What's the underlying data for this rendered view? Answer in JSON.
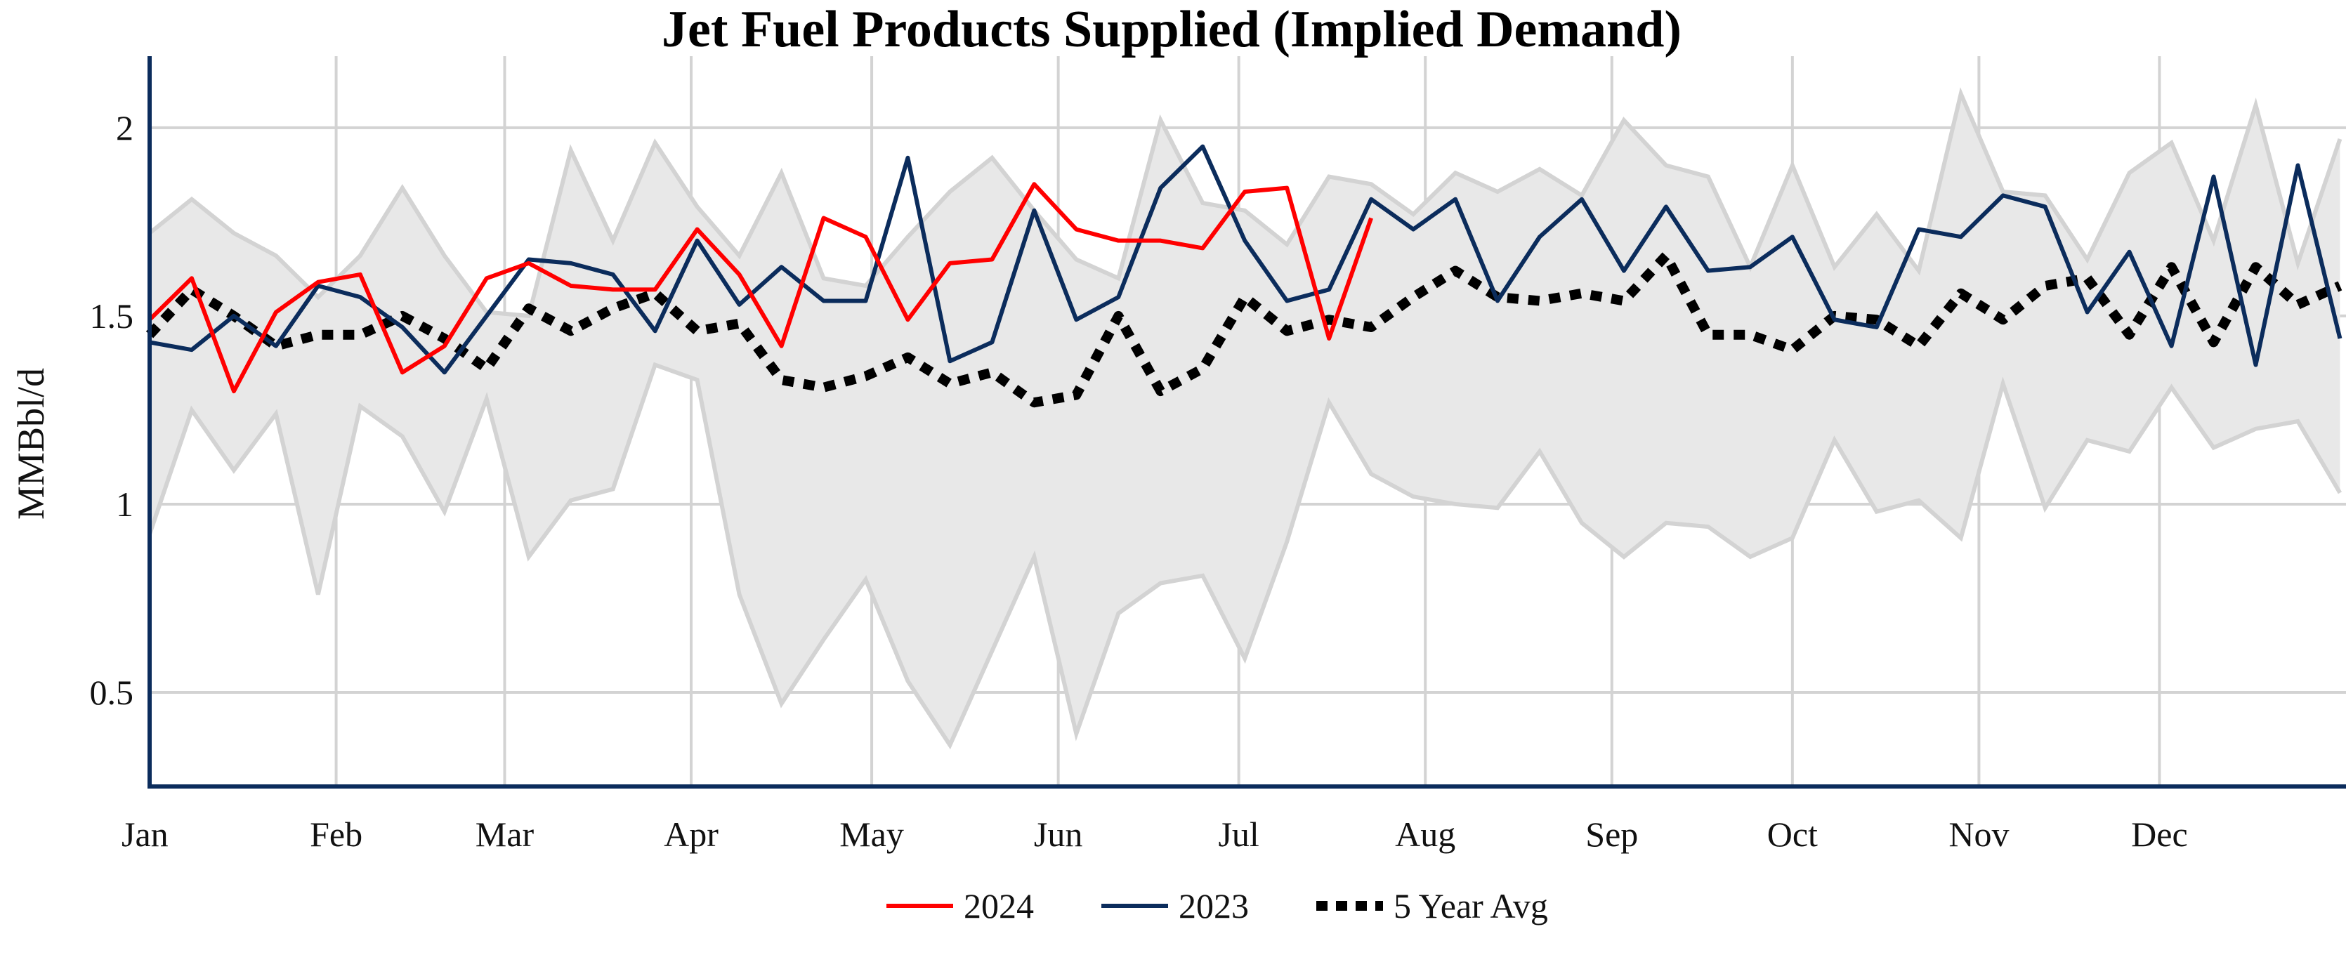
{
  "chart_data": {
    "type": "line",
    "title": "Jet Fuel Products Supplied (Implied Demand)",
    "xlabel": "",
    "ylabel": "MMBbl/d",
    "ylim": [
      0.25,
      2.19
    ],
    "yticks": [
      0.5,
      1,
      1.5,
      2
    ],
    "ytick_labels": [
      "0.5",
      "1",
      "1.5",
      "2"
    ],
    "x_unit": "week of year",
    "xtick_labels": [
      "Jan",
      "Feb",
      "Mar",
      "Apr",
      "May",
      "Jun",
      "Jul",
      "Aug",
      "Sep",
      "Oct",
      "Nov",
      "Dec"
    ],
    "grid": true,
    "legend_position": "bottom",
    "band": {
      "description_shown": false,
      "upper": [
        1.72,
        1.81,
        1.72,
        1.66,
        1.55,
        1.66,
        1.84,
        1.66,
        1.51,
        1.5,
        1.94,
        1.7,
        1.96,
        1.79,
        1.66,
        1.88,
        1.6,
        1.58,
        1.71,
        1.83,
        1.92,
        1.78,
        1.65,
        1.6,
        2.02,
        1.8,
        1.78,
        1.69,
        1.87,
        1.85,
        1.77,
        1.88,
        1.83,
        1.89,
        1.82,
        2.02,
        1.9,
        1.87,
        1.63,
        1.9,
        1.63,
        1.77,
        1.62,
        2.09,
        1.83,
        1.82,
        1.65,
        1.88,
        1.96,
        1.7,
        2.06,
        1.64,
        1.97
      ],
      "lower": [
        0.92,
        1.25,
        1.09,
        1.24,
        0.76,
        1.26,
        1.18,
        0.98,
        1.28,
        0.86,
        1.01,
        1.04,
        1.37,
        1.33,
        0.76,
        0.47,
        0.64,
        0.8,
        0.53,
        0.36,
        0.61,
        0.86,
        0.39,
        0.71,
        0.79,
        0.81,
        0.59,
        0.9,
        1.27,
        1.08,
        1.02,
        1.0,
        0.99,
        1.14,
        0.95,
        0.86,
        0.95,
        0.94,
        0.86,
        0.91,
        1.17,
        0.98,
        1.01,
        0.91,
        1.32,
        0.99,
        1.17,
        1.14,
        1.31,
        1.15,
        1.2,
        1.22,
        1.03
      ]
    },
    "series": [
      {
        "name": "2024",
        "color": "#ff0000",
        "style": "solid",
        "values": [
          1.49,
          1.6,
          1.3,
          1.51,
          1.59,
          1.61,
          1.35,
          1.42,
          1.6,
          1.64,
          1.58,
          1.57,
          1.57,
          1.73,
          1.61,
          1.42,
          1.76,
          1.71,
          1.49,
          1.64,
          1.65,
          1.85,
          1.73,
          1.7,
          1.7,
          1.68,
          1.83,
          1.84,
          1.44,
          1.76
        ]
      },
      {
        "name": "2023",
        "color": "#0b2c5c",
        "style": "solid",
        "values": [
          1.43,
          1.41,
          1.5,
          1.42,
          1.58,
          1.55,
          1.47,
          1.35,
          1.5,
          1.65,
          1.64,
          1.61,
          1.46,
          1.7,
          1.53,
          1.63,
          1.54,
          1.54,
          1.92,
          1.38,
          1.43,
          1.78,
          1.49,
          1.55,
          1.84,
          1.95,
          1.7,
          1.54,
          1.57,
          1.81,
          1.73,
          1.81,
          1.54,
          1.71,
          1.81,
          1.62,
          1.79,
          1.62,
          1.63,
          1.71,
          1.49,
          1.47,
          1.73,
          1.71,
          1.82,
          1.79,
          1.51,
          1.67,
          1.42,
          1.87,
          1.37,
          1.9,
          1.44
        ]
      },
      {
        "name": "5 Year Avg",
        "color": "#000000",
        "style": "dotted",
        "values": [
          1.45,
          1.57,
          1.5,
          1.42,
          1.45,
          1.45,
          1.5,
          1.44,
          1.36,
          1.52,
          1.46,
          1.52,
          1.56,
          1.46,
          1.48,
          1.33,
          1.31,
          1.34,
          1.39,
          1.32,
          1.35,
          1.27,
          1.29,
          1.5,
          1.3,
          1.36,
          1.55,
          1.46,
          1.49,
          1.47,
          1.55,
          1.62,
          1.55,
          1.54,
          1.56,
          1.54,
          1.66,
          1.45,
          1.45,
          1.41,
          1.5,
          1.49,
          1.42,
          1.56,
          1.49,
          1.58,
          1.6,
          1.45,
          1.63,
          1.43,
          1.63,
          1.53,
          1.58
        ]
      }
    ]
  }
}
